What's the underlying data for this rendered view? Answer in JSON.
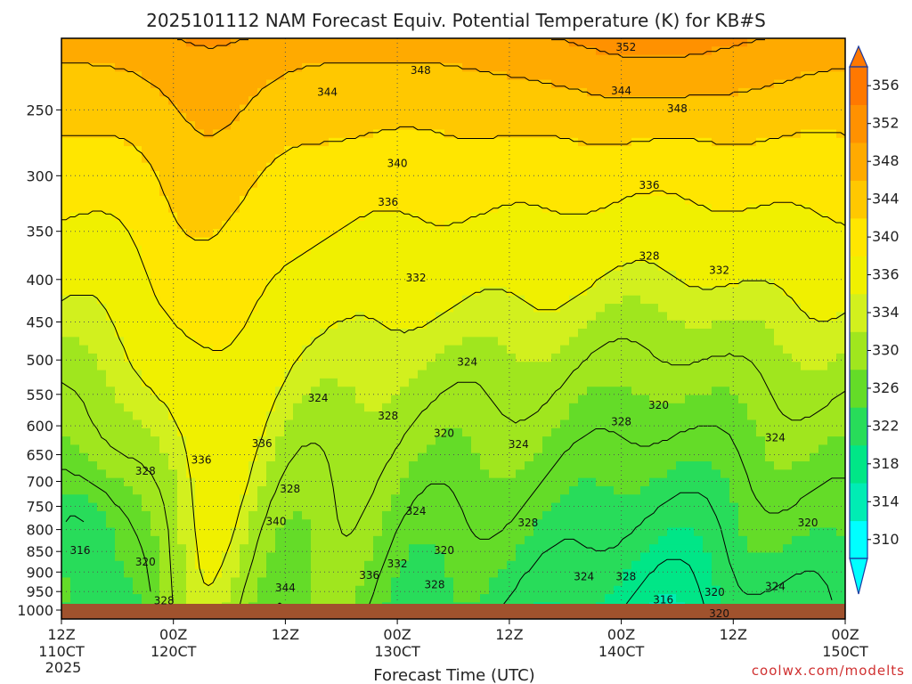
{
  "chart_data": {
    "type": "heatmap",
    "title": "2025101112 NAM Forecast Equiv. Potential Temperature (K) for KB#S",
    "xlabel": "Forecast Time (UTC)",
    "ylabel": "",
    "credit": "coolwx.com/modelts",
    "y_scale": "log-pressure",
    "y_ticks": [
      250,
      300,
      350,
      400,
      450,
      500,
      550,
      600,
      650,
      700,
      750,
      800,
      850,
      900,
      950,
      1000
    ],
    "y_range": [
      1025,
      205
    ],
    "x_range_hours": [
      0,
      84
    ],
    "x_ticks": [
      {
        "hour": 0,
        "top": "12Z",
        "bottom": "110CT",
        "extra": "2025"
      },
      {
        "hour": 12,
        "top": "00Z",
        "bottom": "120CT",
        "extra": ""
      },
      {
        "hour": 24,
        "top": "12Z",
        "bottom": "",
        "extra": ""
      },
      {
        "hour": 36,
        "top": "00Z",
        "bottom": "130CT",
        "extra": ""
      },
      {
        "hour": 48,
        "top": "12Z",
        "bottom": "",
        "extra": ""
      },
      {
        "hour": 60,
        "top": "00Z",
        "bottom": "140CT",
        "extra": ""
      },
      {
        "hour": 72,
        "top": "12Z",
        "bottom": "",
        "extra": ""
      },
      {
        "hour": 84,
        "top": "00Z",
        "bottom": "150CT",
        "extra": ""
      }
    ],
    "grid": true,
    "colorbar": {
      "levels": [
        310,
        314,
        318,
        322,
        326,
        330,
        334,
        336,
        340,
        344,
        348,
        352,
        356
      ],
      "colors": [
        "#00ffff",
        "#00ecb4",
        "#00e687",
        "#28dc5a",
        "#64dc28",
        "#a0e61e",
        "#d2f01e",
        "#f0f000",
        "#ffe600",
        "#ffc800",
        "#ffaa00",
        "#ff9100",
        "#ff7800"
      ],
      "labels": [
        "310",
        "314",
        "318",
        "322",
        "326",
        "330",
        "334",
        "336",
        "340",
        "344",
        "348",
        "352",
        "356"
      ]
    },
    "contour_labels": [
      {
        "text": "352",
        "hour": 60.5,
        "p": 210
      },
      {
        "text": "348",
        "hour": 38.5,
        "p": 224
      },
      {
        "text": "344",
        "hour": 28.5,
        "p": 238
      },
      {
        "text": "344",
        "hour": 60.0,
        "p": 237
      },
      {
        "text": "348",
        "hour": 66.0,
        "p": 249
      },
      {
        "text": "340",
        "hour": 36.0,
        "p": 290
      },
      {
        "text": "336",
        "hour": 35.0,
        "p": 323
      },
      {
        "text": "336",
        "hour": 63.0,
        "p": 308
      },
      {
        "text": "328",
        "hour": 63.0,
        "p": 375
      },
      {
        "text": "332",
        "hour": 70.5,
        "p": 390
      },
      {
        "text": "332",
        "hour": 38.0,
        "p": 398
      },
      {
        "text": "324",
        "hour": 43.5,
        "p": 503
      },
      {
        "text": "324",
        "hour": 27.5,
        "p": 556
      },
      {
        "text": "320",
        "hour": 64.0,
        "p": 567
      },
      {
        "text": "328",
        "hour": 35.0,
        "p": 584
      },
      {
        "text": "328",
        "hour": 60.0,
        "p": 593
      },
      {
        "text": "320",
        "hour": 41.0,
        "p": 613
      },
      {
        "text": "336",
        "hour": 21.5,
        "p": 630
      },
      {
        "text": "324",
        "hour": 49.0,
        "p": 632
      },
      {
        "text": "324",
        "hour": 76.5,
        "p": 620
      },
      {
        "text": "336",
        "hour": 15.0,
        "p": 660
      },
      {
        "text": "328",
        "hour": 9.0,
        "p": 680
      },
      {
        "text": "328",
        "hour": 24.5,
        "p": 715
      },
      {
        "text": "324",
        "hour": 38.0,
        "p": 760
      },
      {
        "text": "340",
        "hour": 23.0,
        "p": 782
      },
      {
        "text": "328",
        "hour": 50.0,
        "p": 785
      },
      {
        "text": "320",
        "hour": 80.0,
        "p": 785
      },
      {
        "text": "316",
        "hour": 2.0,
        "p": 848
      },
      {
        "text": "320",
        "hour": 41.0,
        "p": 848
      },
      {
        "text": "320",
        "hour": 9.0,
        "p": 875
      },
      {
        "text": "332",
        "hour": 36.0,
        "p": 880
      },
      {
        "text": "336",
        "hour": 33.0,
        "p": 908
      },
      {
        "text": "324",
        "hour": 56.0,
        "p": 912
      },
      {
        "text": "328",
        "hour": 60.5,
        "p": 912
      },
      {
        "text": "328",
        "hour": 40.0,
        "p": 932
      },
      {
        "text": "344",
        "hour": 24.0,
        "p": 940
      },
      {
        "text": "324",
        "hour": 76.5,
        "p": 937
      },
      {
        "text": "320",
        "hour": 70.0,
        "p": 952
      },
      {
        "text": "316",
        "hour": 64.5,
        "p": 972
      },
      {
        "text": "328",
        "hour": 11.0,
        "p": 975
      },
      {
        "text": "320",
        "hour": 70.5,
        "p": 1010
      }
    ]
  }
}
